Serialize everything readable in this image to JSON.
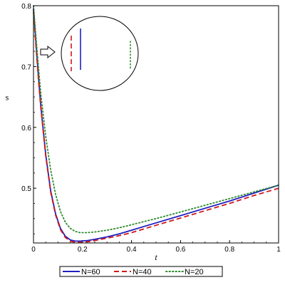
{
  "chart_data": {
    "type": "line",
    "xlabel": "t",
    "ylabel": "s",
    "xlim": [
      0,
      1
    ],
    "ylim": [
      0.41,
      0.8
    ],
    "x_ticks": [
      "0",
      "0.2",
      "0.4",
      "0.6",
      "0.8",
      "1"
    ],
    "y_ticks": [
      "0.5",
      "0.6",
      "0.7",
      "0.8"
    ],
    "legend_position": "bottom",
    "series": [
      {
        "name": "N=60",
        "color": "#1f1fbf",
        "dash": "solid",
        "x": [
          0,
          0.01,
          0.02,
          0.03,
          0.05,
          0.07,
          0.09,
          0.11,
          0.13,
          0.15,
          0.17,
          0.19,
          0.22,
          0.25,
          0.3,
          0.35,
          0.4,
          0.5,
          0.6,
          0.7,
          0.8,
          0.9,
          1.0
        ],
        "values": [
          0.795,
          0.74,
          0.685,
          0.635,
          0.555,
          0.496,
          0.458,
          0.434,
          0.421,
          0.415,
          0.413,
          0.413,
          0.414,
          0.416,
          0.42,
          0.425,
          0.431,
          0.443,
          0.455,
          0.467,
          0.479,
          0.492,
          0.505
        ]
      },
      {
        "name": "N=40",
        "color": "#d01818",
        "dash": "dashed",
        "x": [
          0,
          0.01,
          0.02,
          0.03,
          0.05,
          0.07,
          0.09,
          0.11,
          0.13,
          0.15,
          0.17,
          0.19,
          0.22,
          0.25,
          0.3,
          0.35,
          0.4,
          0.5,
          0.6,
          0.7,
          0.8,
          0.9,
          1.0
        ],
        "values": [
          0.79,
          0.735,
          0.68,
          0.632,
          0.553,
          0.494,
          0.456,
          0.432,
          0.419,
          0.413,
          0.411,
          0.411,
          0.412,
          0.414,
          0.418,
          0.422,
          0.427,
          0.439,
          0.451,
          0.463,
          0.475,
          0.488,
          0.5
        ]
      },
      {
        "name": "N=20",
        "color": "#2e8b2e",
        "dash": "dotted",
        "x": [
          0,
          0.01,
          0.02,
          0.03,
          0.05,
          0.07,
          0.09,
          0.11,
          0.13,
          0.15,
          0.17,
          0.19,
          0.22,
          0.25,
          0.3,
          0.35,
          0.4,
          0.5,
          0.6,
          0.7,
          0.8,
          0.9,
          1.0
        ],
        "values": [
          0.8,
          0.75,
          0.7,
          0.655,
          0.585,
          0.53,
          0.49,
          0.462,
          0.444,
          0.434,
          0.429,
          0.427,
          0.427,
          0.428,
          0.431,
          0.435,
          0.44,
          0.45,
          0.461,
          0.472,
          0.483,
          0.494,
          0.505
        ]
      }
    ]
  }
}
